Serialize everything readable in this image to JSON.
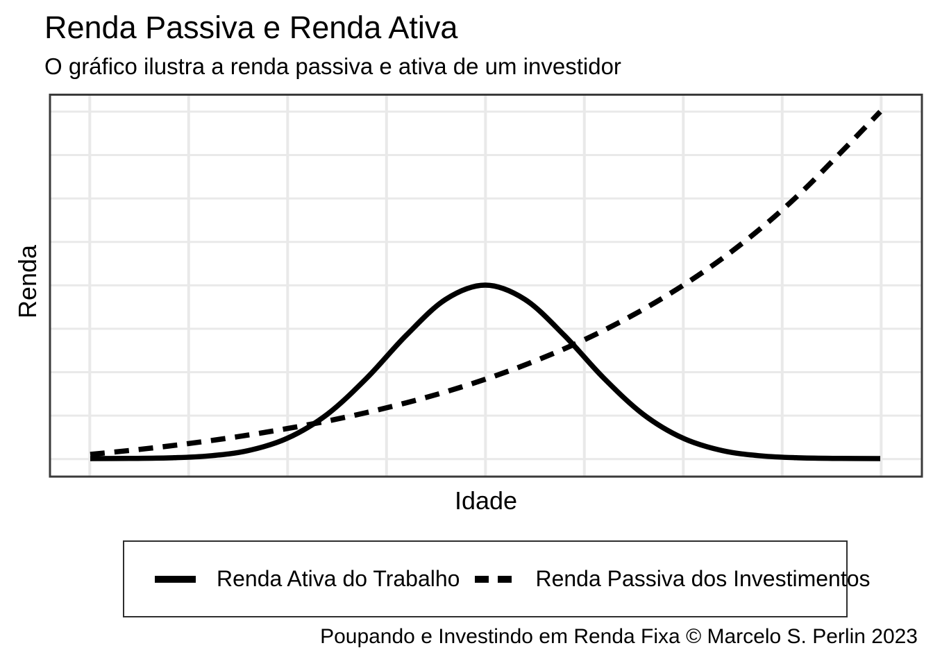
{
  "title": "Renda Passiva e Renda Ativa",
  "subtitle": "O gráfico ilustra a renda passiva e ativa de um investidor",
  "caption": "Poupando e Investindo em Renda Fixa © Marcelo S. Perlin 2023",
  "axes": {
    "x_label": "Idade",
    "y_label": "Renda",
    "x_tick_labels": [],
    "y_tick_labels": []
  },
  "legend": {
    "position": "bottom",
    "items": [
      {
        "label": "Renda Ativa do Trabalho",
        "linetype": "solid"
      },
      {
        "label": "Renda Passiva dos Investimentos",
        "linetype": "dashed"
      }
    ]
  },
  "colors": {
    "line": "#000000",
    "grid": "#e9e9e9",
    "panel_border": "#3a3a3a",
    "legend_border": "#2e2e2e",
    "text": "#000000",
    "background": "#ffffff"
  },
  "chart_data": {
    "type": "line",
    "title": "Renda Passiva e Renda Ativa",
    "subtitle": "O gráfico ilustra a renda passiva e ativa de um investidor",
    "xlabel": "Idade",
    "ylabel": "Renda",
    "x": [
      0,
      0.05,
      0.1,
      0.15,
      0.2,
      0.25,
      0.3,
      0.35,
      0.4,
      0.45,
      0.5,
      0.55,
      0.6,
      0.65,
      0.7,
      0.75,
      0.8,
      0.85,
      0.9,
      0.95,
      1
    ],
    "series": [
      {
        "name": "Renda Ativa do Trabalho",
        "style": "solid",
        "values": [
          0.0001,
          0.0005,
          0.0021,
          0.0076,
          0.0231,
          0.0592,
          0.1276,
          0.2319,
          0.3554,
          0.4591,
          0.5,
          0.4591,
          0.3554,
          0.2319,
          0.1276,
          0.0592,
          0.0231,
          0.0076,
          0.0021,
          0.0005,
          0.0001
        ]
      },
      {
        "name": "Renda Passiva dos Investimentos",
        "style": "dashed",
        "values": [
          0.012,
          0.0234,
          0.0363,
          0.051,
          0.0677,
          0.0867,
          0.1082,
          0.1328,
          0.1607,
          0.1925,
          0.2286,
          0.2697,
          0.3164,
          0.3696,
          0.4301,
          0.4988,
          0.5769,
          0.6659,
          0.7674,
          0.8821,
          1.0
        ]
      }
    ],
    "xlim": [
      0,
      1
    ],
    "ylim": [
      0,
      1
    ],
    "grid": "on",
    "legend_position": "bottom"
  }
}
